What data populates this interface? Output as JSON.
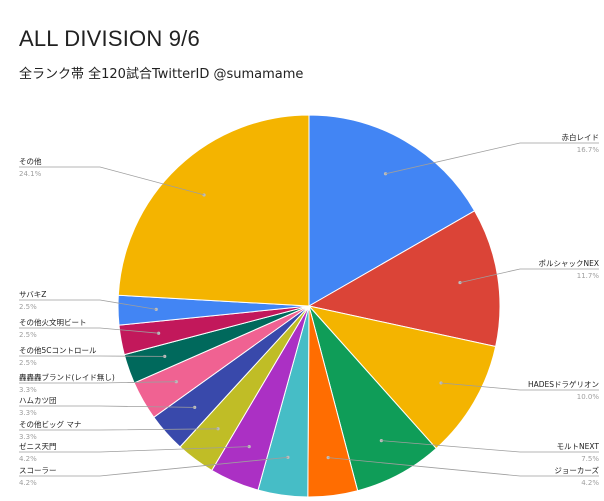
{
  "chart_data": {
    "type": "pie",
    "title": "ALL DIVISION 9/6",
    "subtitle": "全ランク帯 全120試合TwitterID @sumamame",
    "slices": [
      {
        "label": "赤白レイド",
        "percent": 16.7,
        "percent_label": "16.7%",
        "color": "#4285f4"
      },
      {
        "label": "ポルシャックNEX",
        "percent": 11.7,
        "percent_label": "11.7%",
        "color": "#db4437"
      },
      {
        "label": "HADESドラゲリオン",
        "percent": 10.0,
        "percent_label": "10.0%",
        "color": "#f4b400"
      },
      {
        "label": "モルトNEXT",
        "percent": 7.5,
        "percent_label": "7.5%",
        "color": "#0f9d58"
      },
      {
        "label": "ジョーカーズ",
        "percent": 4.2,
        "percent_label": "4.2%",
        "color": "#ff6d01"
      },
      {
        "label": "スコーラー",
        "percent": 4.2,
        "percent_label": "4.2%",
        "color": "#46bdc6"
      },
      {
        "label": "ゼニス天門",
        "percent": 4.2,
        "percent_label": "4.2%",
        "color": "#ab30c4"
      },
      {
        "label": "その他ビッグ マナ",
        "percent": 3.3,
        "percent_label": "3.3%",
        "color": "#c0bd26"
      },
      {
        "label": "ハムカツ団",
        "percent": 3.3,
        "percent_label": "3.3%",
        "color": "#3949ab"
      },
      {
        "label": "轟轟轟ブランド(レイド無し)",
        "percent": 3.3,
        "percent_label": "3.3%",
        "color": "#f06292"
      },
      {
        "label": "その他5Cコントロール",
        "percent": 2.5,
        "percent_label": "2.5%",
        "color": "#00695c"
      },
      {
        "label": "その他火文明ビート",
        "percent": 2.5,
        "percent_label": "2.5%",
        "color": "#c2185b"
      },
      {
        "label": "サバキZ",
        "percent": 2.5,
        "percent_label": "2.5%",
        "color": "#4285f4"
      },
      {
        "label": "その他",
        "percent": 24.1,
        "percent_label": "24.1%",
        "color": "#f4b400"
      }
    ]
  }
}
